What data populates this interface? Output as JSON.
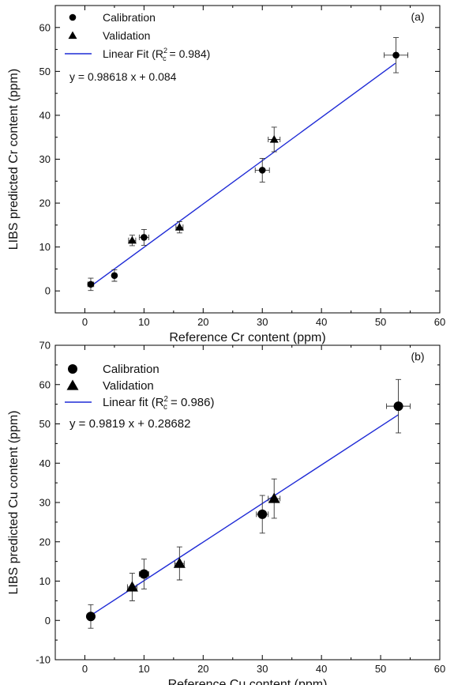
{
  "chart_data": [
    {
      "type": "scatter",
      "panel_label": "(a)",
      "xlabel": "Reference Cr content (ppm)",
      "ylabel": "LIBS predicted Cr content (ppm)",
      "xlim": [
        -5,
        60
      ],
      "ylim": [
        -5,
        65
      ],
      "xticks": [
        0,
        10,
        20,
        30,
        40,
        50,
        60
      ],
      "yticks": [
        0,
        10,
        20,
        30,
        40,
        50,
        60
      ],
      "grid": false,
      "legend_position": "top-left",
      "legend": [
        {
          "label": "Calibration",
          "marker": "circle"
        },
        {
          "label": "Validation",
          "marker": "triangle"
        },
        {
          "label_prefix": "Linear Fit (R",
          "sup": "2",
          "sub": "c",
          "label_suffix": " = 0.984)",
          "marker": "line"
        }
      ],
      "equation": "y =  0.98618 x + 0.084",
      "fit": {
        "slope": 0.98618,
        "intercept": 0.084,
        "x_range": [
          1,
          52.5
        ],
        "color": "#1f2bd6"
      },
      "series": [
        {
          "name": "Calibration",
          "marker": "circle",
          "points": [
            {
              "x": 1,
              "y": 1.5,
              "xerr": 0.5,
              "yerr": 1.4
            },
            {
              "x": 5,
              "y": 3.5,
              "xerr": 0.3,
              "yerr": 1.3
            },
            {
              "x": 10,
              "y": 12.2,
              "xerr": 0.8,
              "yerr": 1.8
            },
            {
              "x": 30,
              "y": 27.5,
              "xerr": 1.2,
              "yerr": 2.7
            },
            {
              "x": 52.6,
              "y": 53.7,
              "xerr": 2.0,
              "yerr": 4.0
            }
          ]
        },
        {
          "name": "Validation",
          "marker": "triangle",
          "points": [
            {
              "x": 8,
              "y": 11.5,
              "xerr": 0.6,
              "yerr": 1.2
            },
            {
              "x": 16,
              "y": 14.5,
              "xerr": 0.6,
              "yerr": 1.3
            },
            {
              "x": 32,
              "y": 34.5,
              "xerr": 1.0,
              "yerr": 2.8
            }
          ]
        }
      ]
    },
    {
      "type": "scatter",
      "panel_label": "(b)",
      "xlabel": "Reference Cu content (ppm)",
      "ylabel": "LIBS predicted Cu content (ppm)",
      "xlim": [
        -5,
        60
      ],
      "ylim": [
        -10,
        70
      ],
      "xticks": [
        0,
        10,
        20,
        30,
        40,
        50,
        60
      ],
      "yticks": [
        -10,
        0,
        10,
        20,
        30,
        40,
        50,
        60,
        70
      ],
      "grid": false,
      "legend_position": "top-left",
      "legend": [
        {
          "label": "Calibration",
          "marker": "circle"
        },
        {
          "label": "Validation",
          "marker": "triangle"
        },
        {
          "label_prefix": "Linear fit (R",
          "sup": "2",
          "sub": "c",
          "label_suffix": " = 0.986)",
          "marker": "line"
        }
      ],
      "equation": "y = 0.9819 x + 0.28682",
      "fit": {
        "slope": 0.9819,
        "intercept": 0.28682,
        "x_range": [
          1,
          53
        ],
        "color": "#1f2bd6"
      },
      "series": [
        {
          "name": "Calibration",
          "marker": "circle",
          "points": [
            {
              "x": 1,
              "y": 1.0,
              "xerr": 0.5,
              "yerr": 3.0
            },
            {
              "x": 10,
              "y": 11.8,
              "xerr": 0.8,
              "yerr": 3.8
            },
            {
              "x": 30,
              "y": 27.0,
              "xerr": 1.0,
              "yerr": 4.8
            },
            {
              "x": 53,
              "y": 54.5,
              "xerr": 2.0,
              "yerr": 6.8
            }
          ]
        },
        {
          "name": "Validation",
          "marker": "triangle",
          "points": [
            {
              "x": 8,
              "y": 8.5,
              "xerr": 0.8,
              "yerr": 3.5
            },
            {
              "x": 16,
              "y": 14.5,
              "xerr": 0.8,
              "yerr": 4.2
            },
            {
              "x": 32,
              "y": 31.0,
              "xerr": 1.0,
              "yerr": 5.0
            }
          ]
        }
      ]
    }
  ]
}
